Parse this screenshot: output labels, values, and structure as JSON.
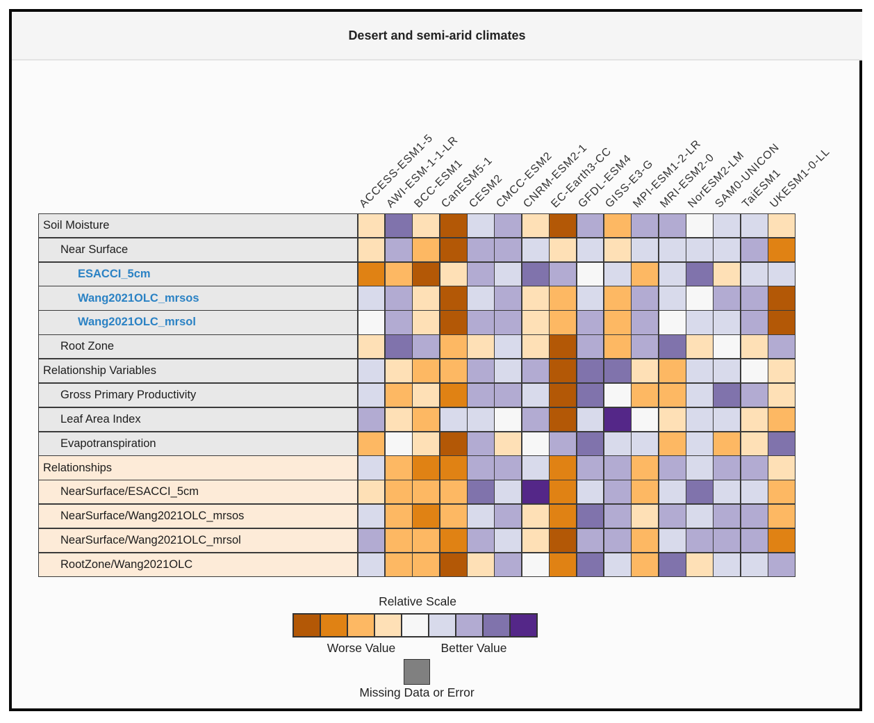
{
  "header": {
    "title": "Desert and semi-arid climates"
  },
  "colors": {
    "frame_border": "#0a0a0a",
    "titlebar_bg": "#f5f5f5",
    "page_bg": "#fbfbfb",
    "grid_line": "#3a3a3a",
    "row_group_gray": "#e8e8e8",
    "row_group_peach": "#fdebd8",
    "link_blue": "#2b82c4",
    "missing_gray": "#808080"
  },
  "chart_data": {
    "type": "heatmap",
    "title": "Desert and semi-arid climates",
    "legend_position": "bottom",
    "columns": [
      "ACCESS-ESM1-5",
      "AWI-ESM-1-1-LR",
      "BCC-ESM1",
      "CanESM5-1",
      "CESM2",
      "CMCC-ESM2",
      "CNRM-ESM2-1",
      "EC-Earth3-CC",
      "GFDL-ESM4",
      "GISS-E3-G",
      "MPI-ESM1-2-LR",
      "MRI-ESM2-0",
      "NorESM2-LM",
      "SAM0-UNICON",
      "TaiESM1",
      "UKESM1-0-LL"
    ],
    "palette": {
      "O4": "#b35806",
      "O3": "#e08214",
      "O2": "#fdb863",
      "O1": "#fee0b6",
      "W": "#f7f7f7",
      "P1": "#d8daeb",
      "P2": "#b2abd2",
      "P3": "#8073ac",
      "P4": "#542788"
    },
    "scale_order": [
      "O4",
      "O3",
      "O2",
      "O1",
      "W",
      "P1",
      "P2",
      "P3",
      "P4"
    ],
    "value_semantics": "relative score per row: orange end = worse value, purple end = better value",
    "rows": [
      {
        "label": "Soil Moisture",
        "indent": 0,
        "group": "gray",
        "link": false,
        "values": [
          "O1",
          "P3",
          "O1",
          "O4",
          "P1",
          "P2",
          "O1",
          "O4",
          "P2",
          "O2",
          "P2",
          "P2",
          "W",
          "P1",
          "P1",
          "O1"
        ]
      },
      {
        "label": "Near Surface",
        "indent": 1,
        "group": "gray",
        "link": false,
        "values": [
          "O1",
          "P2",
          "O2",
          "O4",
          "P2",
          "P2",
          "P1",
          "O1",
          "P1",
          "O1",
          "P1",
          "P1",
          "P1",
          "P1",
          "P2",
          "O3"
        ]
      },
      {
        "label": "ESACCI_5cm",
        "indent": 2,
        "group": "gray",
        "link": true,
        "values": [
          "O3",
          "O2",
          "O4",
          "O1",
          "P2",
          "P1",
          "P3",
          "P2",
          "W",
          "P1",
          "O2",
          "P1",
          "P3",
          "O1",
          "P1",
          "P1"
        ]
      },
      {
        "label": "Wang2021OLC_mrsos",
        "indent": 2,
        "group": "gray",
        "link": true,
        "values": [
          "P1",
          "P2",
          "O1",
          "O4",
          "P1",
          "P2",
          "O1",
          "O2",
          "P1",
          "O2",
          "P2",
          "P1",
          "W",
          "P2",
          "P2",
          "O4"
        ]
      },
      {
        "label": "Wang2021OLC_mrsol",
        "indent": 2,
        "group": "gray",
        "link": true,
        "values": [
          "W",
          "P2",
          "O1",
          "O4",
          "P2",
          "P2",
          "O1",
          "O2",
          "P2",
          "O2",
          "P2",
          "W",
          "P1",
          "P1",
          "P2",
          "O4"
        ]
      },
      {
        "label": "Root Zone",
        "indent": 1,
        "group": "gray",
        "link": false,
        "values": [
          "O1",
          "P3",
          "P2",
          "O2",
          "O1",
          "P1",
          "O1",
          "O4",
          "P2",
          "O2",
          "P2",
          "P3",
          "O1",
          "W",
          "O1",
          "P2"
        ]
      },
      {
        "label": "Relationship Variables",
        "indent": 0,
        "group": "gray",
        "link": false,
        "values": [
          "P1",
          "O1",
          "O2",
          "O2",
          "P2",
          "P1",
          "P2",
          "O4",
          "P3",
          "P3",
          "O1",
          "O2",
          "P1",
          "P1",
          "W",
          "O1"
        ]
      },
      {
        "label": "Gross Primary Productivity",
        "indent": 1,
        "group": "gray",
        "link": false,
        "values": [
          "P1",
          "O2",
          "O1",
          "O3",
          "P2",
          "P2",
          "P1",
          "O4",
          "P3",
          "W",
          "O2",
          "O2",
          "P1",
          "P3",
          "P2",
          "O1"
        ]
      },
      {
        "label": "Leaf Area Index",
        "indent": 1,
        "group": "gray",
        "link": false,
        "values": [
          "P2",
          "O1",
          "O2",
          "P1",
          "P1",
          "W",
          "P2",
          "O4",
          "P1",
          "P4",
          "W",
          "O1",
          "P1",
          "P1",
          "O1",
          "O2"
        ]
      },
      {
        "label": "Evapotranspiration",
        "indent": 1,
        "group": "gray",
        "link": false,
        "values": [
          "O2",
          "W",
          "O1",
          "O4",
          "P2",
          "O1",
          "W",
          "P2",
          "P3",
          "P1",
          "P1",
          "O2",
          "P1",
          "O2",
          "O1",
          "P3"
        ]
      },
      {
        "label": "Relationships",
        "indent": 0,
        "group": "peach",
        "link": false,
        "values": [
          "P1",
          "O2",
          "O3",
          "O3",
          "P2",
          "P2",
          "P1",
          "O3",
          "P2",
          "P2",
          "O2",
          "P2",
          "P1",
          "P2",
          "P2",
          "O1"
        ]
      },
      {
        "label": "NearSurface/ESACCI_5cm",
        "indent": 1,
        "group": "peach",
        "link": false,
        "values": [
          "O1",
          "O2",
          "O2",
          "O2",
          "P3",
          "P1",
          "P4",
          "O3",
          "P1",
          "P2",
          "O2",
          "P1",
          "P3",
          "P1",
          "P1",
          "O2"
        ]
      },
      {
        "label": "NearSurface/Wang2021OLC_mrsos",
        "indent": 1,
        "group": "peach",
        "link": false,
        "values": [
          "P1",
          "O2",
          "O3",
          "O2",
          "P1",
          "P2",
          "O1",
          "O3",
          "P3",
          "P2",
          "O1",
          "P2",
          "P1",
          "P2",
          "P2",
          "O2"
        ]
      },
      {
        "label": "NearSurface/Wang2021OLC_mrsol",
        "indent": 1,
        "group": "peach",
        "link": false,
        "values": [
          "P2",
          "O2",
          "O2",
          "O3",
          "P2",
          "P1",
          "O1",
          "O4",
          "P2",
          "P2",
          "O2",
          "P1",
          "P2",
          "P2",
          "P2",
          "O3"
        ]
      },
      {
        "label": "RootZone/Wang2021OLC",
        "indent": 1,
        "group": "peach",
        "link": false,
        "values": [
          "P1",
          "O2",
          "O2",
          "O4",
          "O1",
          "P2",
          "W",
          "O3",
          "P3",
          "P1",
          "O2",
          "P3",
          "O1",
          "P1",
          "P1",
          "P2"
        ]
      }
    ],
    "legend": {
      "scale_title": "Relative Scale",
      "worse_label": "Worse Value",
      "better_label": "Better Value",
      "missing_label": "Missing Data or Error",
      "missing_color": "#808080"
    }
  }
}
